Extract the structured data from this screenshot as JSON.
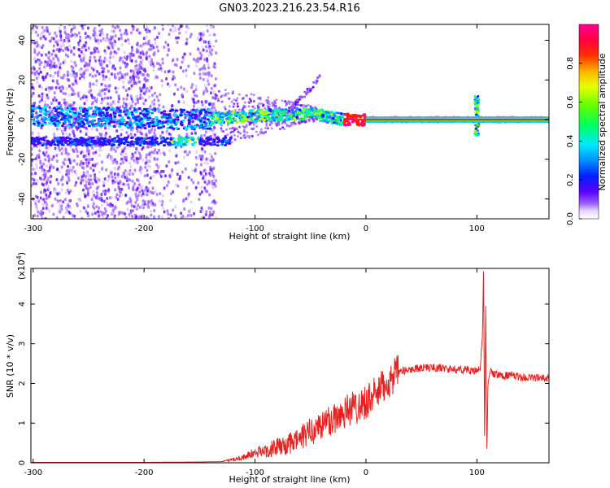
{
  "title": "GN03.2023.216.23.54.R16",
  "chart_data": [
    {
      "type": "heatmap",
      "xlabel": "Height of straight line (km)",
      "ylabel": "Frequency (Hz)",
      "xlim": [
        -302,
        165
      ],
      "ylim": [
        -50,
        48
      ],
      "xticks": [
        -300,
        -200,
        -100,
        0,
        100
      ],
      "yticks": [
        40,
        20,
        0,
        -20,
        -40
      ],
      "colorbar": {
        "label": "Normalized spectral amplitude",
        "range": [
          0,
          1
        ],
        "ticks": [
          0.0,
          0.2,
          0.4,
          0.6,
          0.8
        ],
        "tick_labels": [
          "0.0",
          "0.2",
          "0.4",
          "0.6",
          "0.8"
        ],
        "colormap": "hsv-rainbow (white-violet-blue-cyan-green-yellow-red-magenta)"
      },
      "features": [
        {
          "name": "central frequency band",
          "x": [
            -302,
            -150,
            -100,
            -50,
            -20,
            0,
            50,
            100,
            165
          ],
          "y": [
            2,
            0,
            2,
            3,
            0,
            0,
            0,
            0,
            0
          ]
        },
        {
          "name": "dip near -160 km",
          "x": [
            -175,
            -160,
            -145
          ],
          "y": [
            -10,
            -12,
            -10
          ]
        },
        {
          "name": "spike at 100 km",
          "x": [
            100
          ],
          "y": [
            10
          ]
        }
      ]
    },
    {
      "type": "line",
      "xlabel": "Height of straight line (km)",
      "ylabel": "SNR (10 * v/v)",
      "y_multiplier": "(x10",
      "y_multiplier_exp": "4",
      "xlim": [
        -302,
        165
      ],
      "ylim": [
        0,
        4.9
      ],
      "xticks": [
        -300,
        -200,
        -100,
        0,
        100
      ],
      "yticks": [
        0,
        1,
        2,
        3,
        4
      ],
      "series": [
        {
          "color": "#e8211f",
          "x": [
            -302,
            -250,
            -200,
            -150,
            -130,
            -120,
            -110,
            -100,
            -90,
            -80,
            -70,
            -60,
            -50,
            -40,
            -30,
            -20,
            -10,
            0,
            10,
            20,
            30,
            40,
            50,
            60,
            70,
            80,
            90,
            100,
            103,
            105,
            106,
            107,
            108,
            109,
            110,
            112,
            115,
            120,
            130,
            140,
            150,
            165
          ],
          "y": [
            0.01,
            0.01,
            0.01,
            0.02,
            0.03,
            0.08,
            0.15,
            0.25,
            0.3,
            0.4,
            0.45,
            0.6,
            0.8,
            0.95,
            1.1,
            1.3,
            1.4,
            1.55,
            1.75,
            2.05,
            2.3,
            2.35,
            2.4,
            2.4,
            2.38,
            2.35,
            2.35,
            2.3,
            2.4,
            3.2,
            4.9,
            0.5,
            4.1,
            0.2,
            2.0,
            2.3,
            2.25,
            2.2,
            2.2,
            2.15,
            2.15,
            2.12
          ]
        }
      ]
    }
  ]
}
